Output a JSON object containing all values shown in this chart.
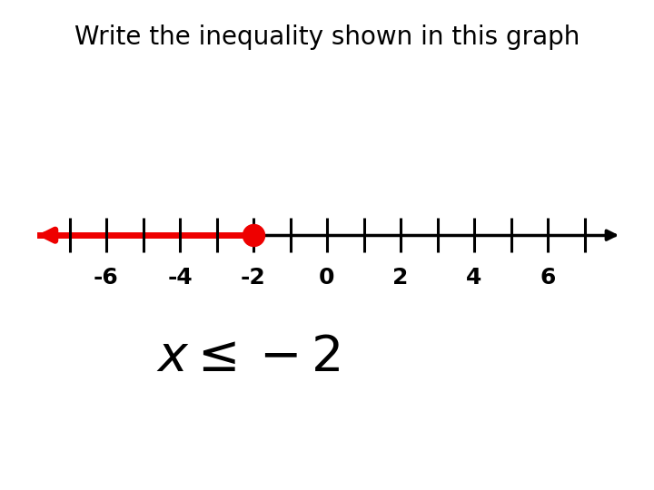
{
  "title": "Write the inequality shown in this graph",
  "title_fontsize": 20,
  "background_color": "#ffffff",
  "tick_positions": [
    -6,
    -4,
    -2,
    0,
    2,
    4,
    6
  ],
  "tick_labels": [
    "-6",
    "-4",
    "-2",
    "0",
    "2",
    "4",
    "6"
  ],
  "minor_tick_positions": [
    -7,
    -6,
    -5,
    -4,
    -3,
    -2,
    -1,
    0,
    1,
    2,
    3,
    4,
    5,
    6,
    7
  ],
  "inequality_point": -2,
  "dot_color": "#ee0000",
  "axis_color": "#000000",
  "annotation_text": "$x \\leq -2$",
  "annotation_fontsize": 40,
  "annotation_box_color": "#ffff66",
  "label_fontsize": 18
}
